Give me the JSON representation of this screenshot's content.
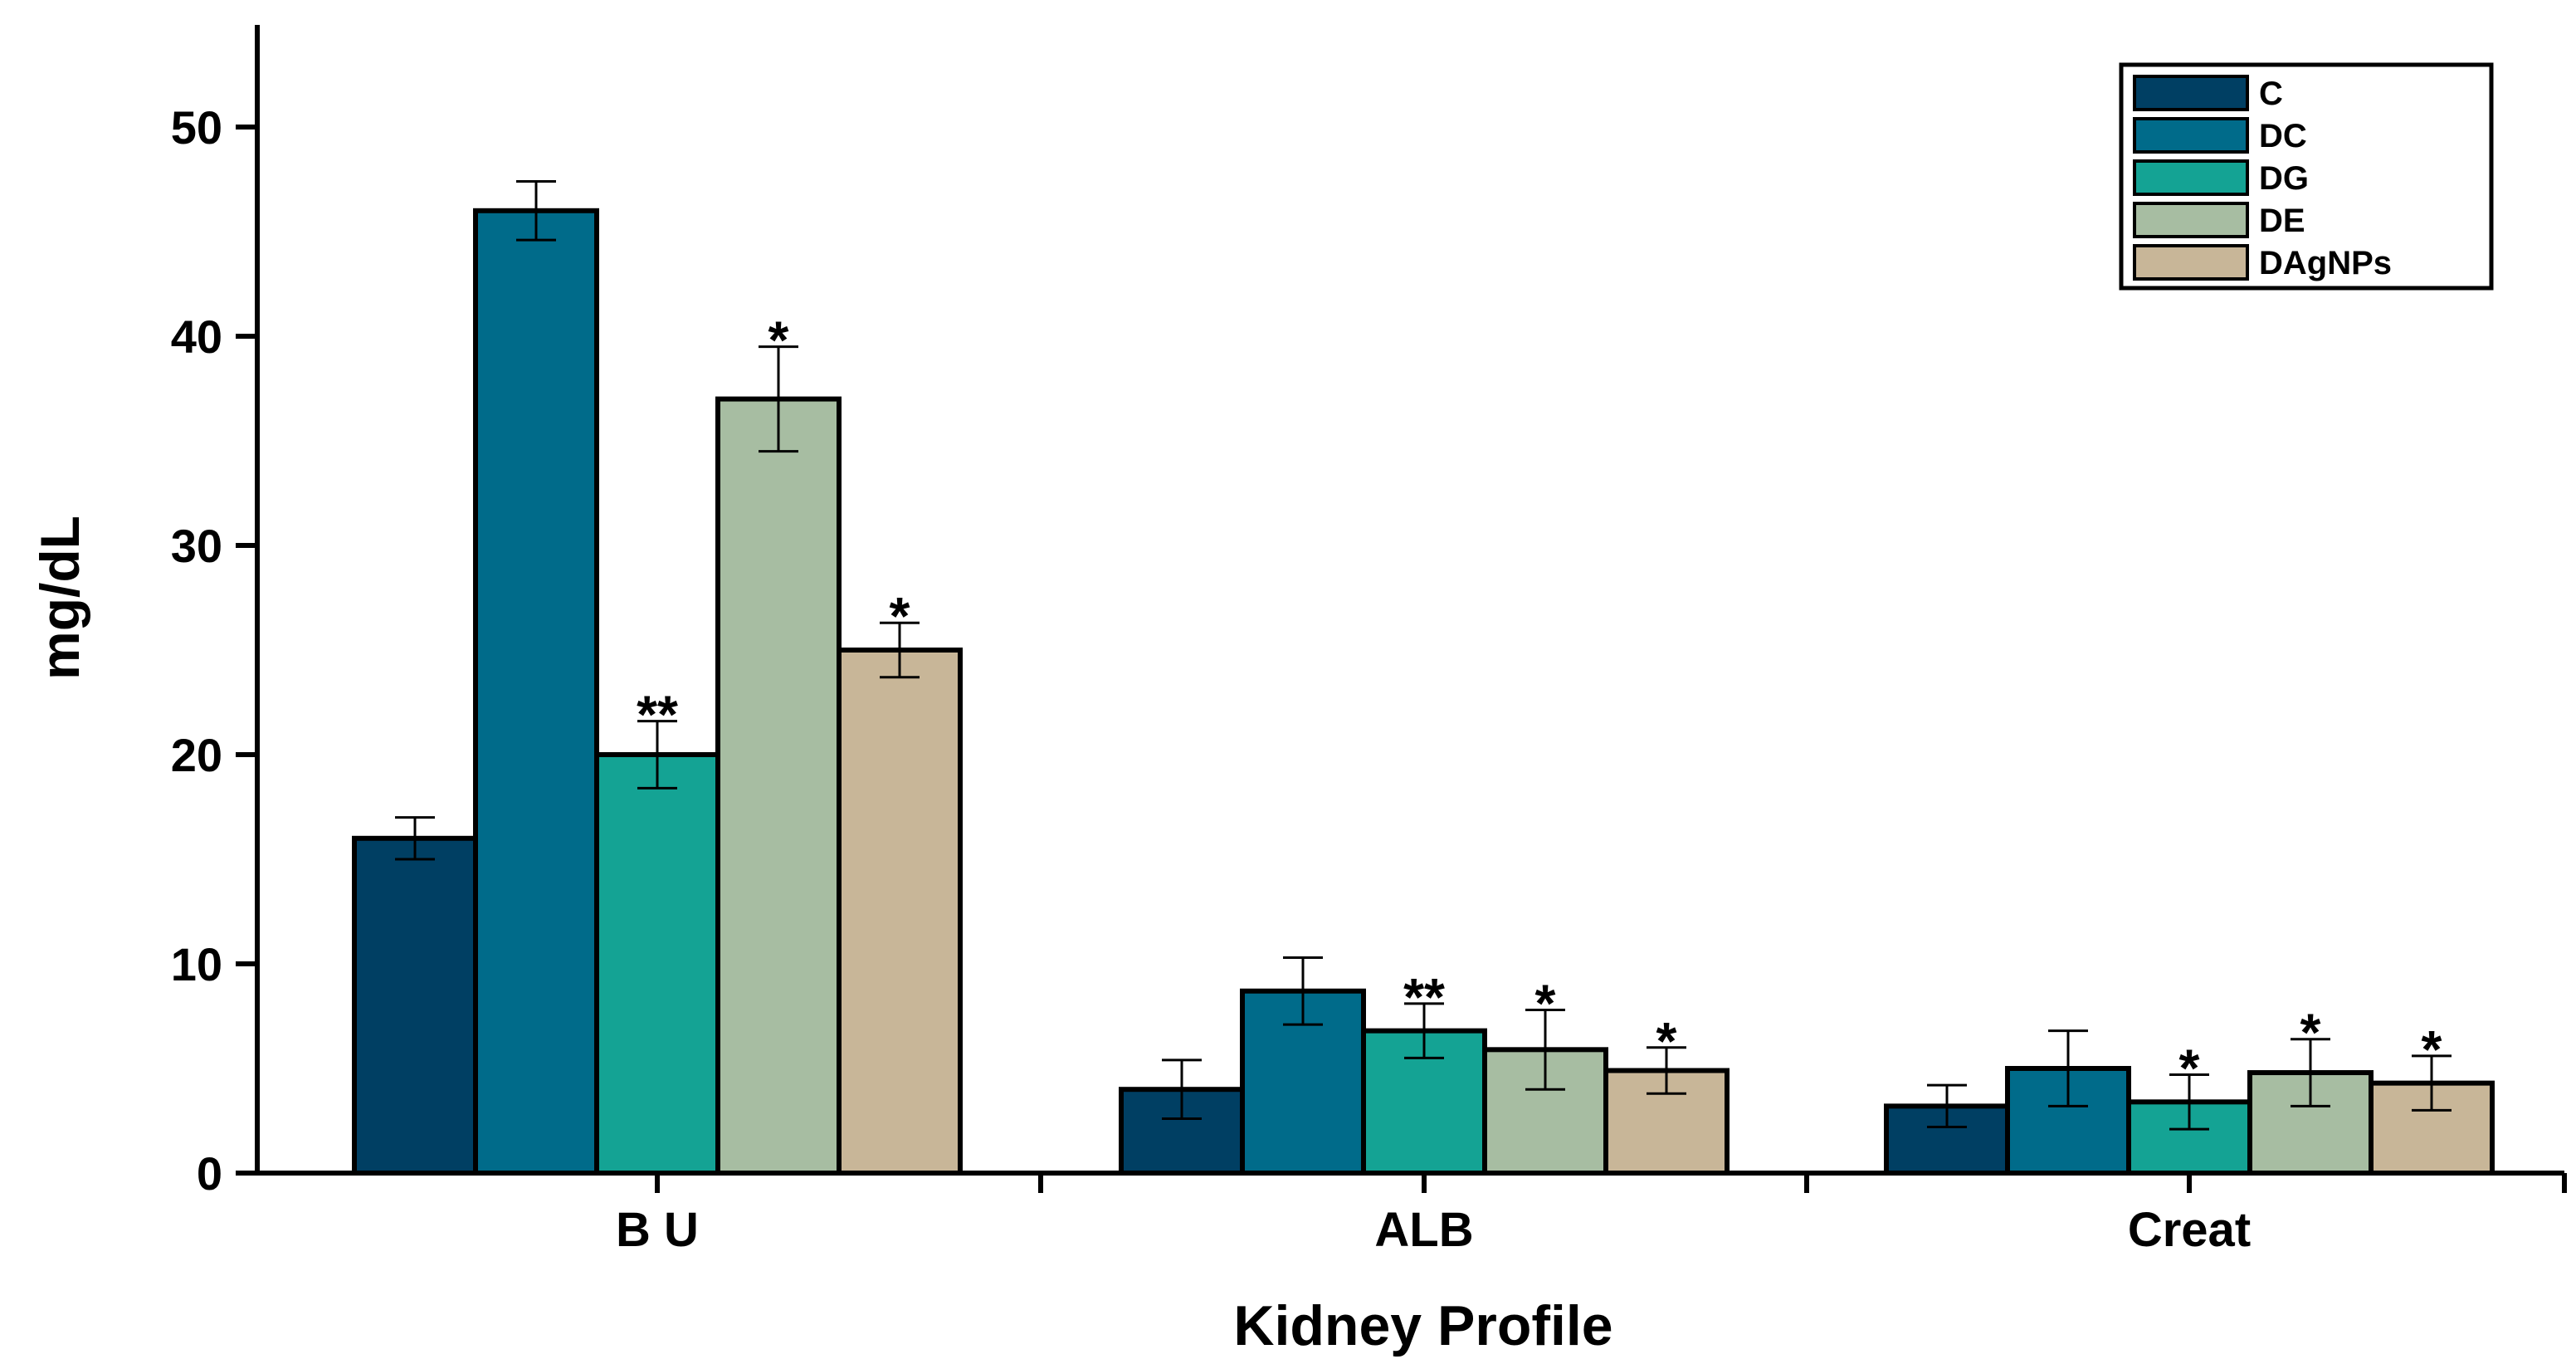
{
  "chart_data": {
    "type": "bar",
    "title": "",
    "xlabel": "Kidney Profile",
    "ylabel": "mg/dL",
    "ylim": [
      0,
      55
    ],
    "yticks": [
      0,
      10,
      20,
      30,
      40,
      50
    ],
    "ytick_labels": [
      "0",
      "10",
      "20",
      "30",
      "40",
      "50"
    ],
    "categories": [
      "B U",
      "ALB",
      "Creat"
    ],
    "legend_position": "top-right",
    "series": [
      {
        "name": "C",
        "color": "#003F63",
        "values": [
          16,
          4,
          3.2
        ],
        "errors": [
          1.0,
          1.4,
          1.0
        ],
        "significance": [
          "",
          "",
          ""
        ]
      },
      {
        "name": "DC",
        "color": "#006B8A",
        "values": [
          46,
          8.7,
          5
        ],
        "errors": [
          1.4,
          1.6,
          1.8
        ],
        "significance": [
          "",
          "",
          ""
        ]
      },
      {
        "name": "DG",
        "color": "#14A394",
        "values": [
          20,
          6.8,
          3.4
        ],
        "errors": [
          1.6,
          1.3,
          1.3
        ],
        "significance": [
          "**",
          "**",
          "*"
        ]
      },
      {
        "name": "DE",
        "color": "#A7BDA2",
        "values": [
          37,
          5.9,
          4.8
        ],
        "errors": [
          2.5,
          1.9,
          1.6
        ],
        "significance": [
          "*",
          "*",
          "*"
        ]
      },
      {
        "name": "DAgNPs",
        "color": "#C8B698",
        "values": [
          25,
          4.9,
          4.3
        ],
        "errors": [
          1.3,
          1.1,
          1.3
        ],
        "significance": [
          "*",
          "*",
          "*"
        ]
      }
    ]
  }
}
